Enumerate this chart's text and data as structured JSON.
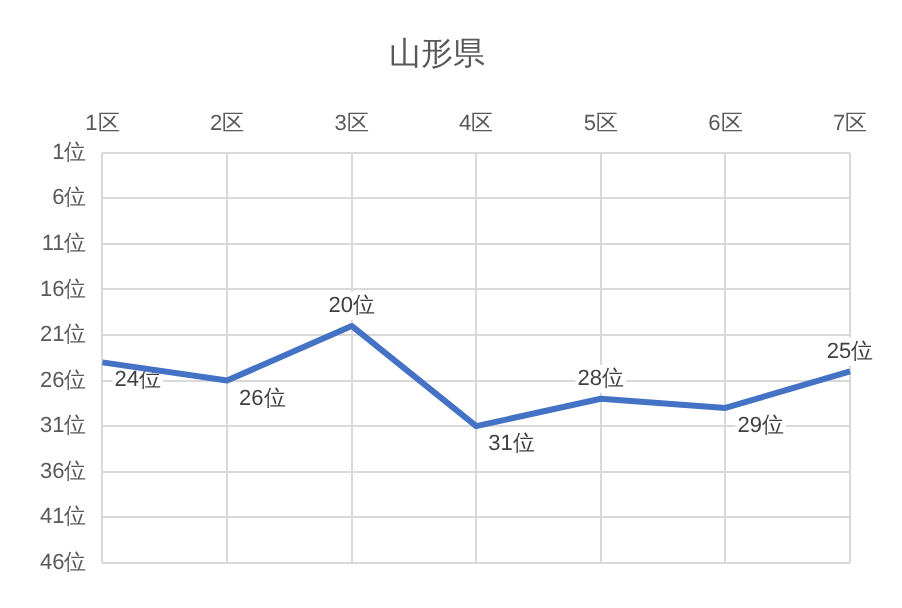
{
  "chart_data": {
    "type": "line",
    "title": "山形県",
    "categories": [
      "1区",
      "2区",
      "3区",
      "4区",
      "5区",
      "6区",
      "7区"
    ],
    "series": [
      {
        "color": "#4472c4",
        "values": [
          24,
          26,
          20,
          31,
          28,
          29,
          25
        ],
        "value_labels": [
          "24位",
          "26位",
          "20位",
          "31位",
          "28位",
          "29位",
          "25位"
        ]
      }
    ],
    "ylim": [
      46,
      1
    ],
    "yticks": [
      {
        "value": 1,
        "label": "1位"
      },
      {
        "value": 6,
        "label": "6位"
      },
      {
        "value": 11,
        "label": "11位"
      },
      {
        "value": 16,
        "label": "16位"
      },
      {
        "value": 21,
        "label": "21位"
      },
      {
        "value": 26,
        "label": "26位"
      },
      {
        "value": 31,
        "label": "31位"
      },
      {
        "value": 36,
        "label": "36位"
      },
      {
        "value": 41,
        "label": "41位"
      },
      {
        "value": 46,
        "label": "46位"
      }
    ],
    "grid": true,
    "legend": false,
    "marker": "none",
    "line_style": "solid"
  }
}
